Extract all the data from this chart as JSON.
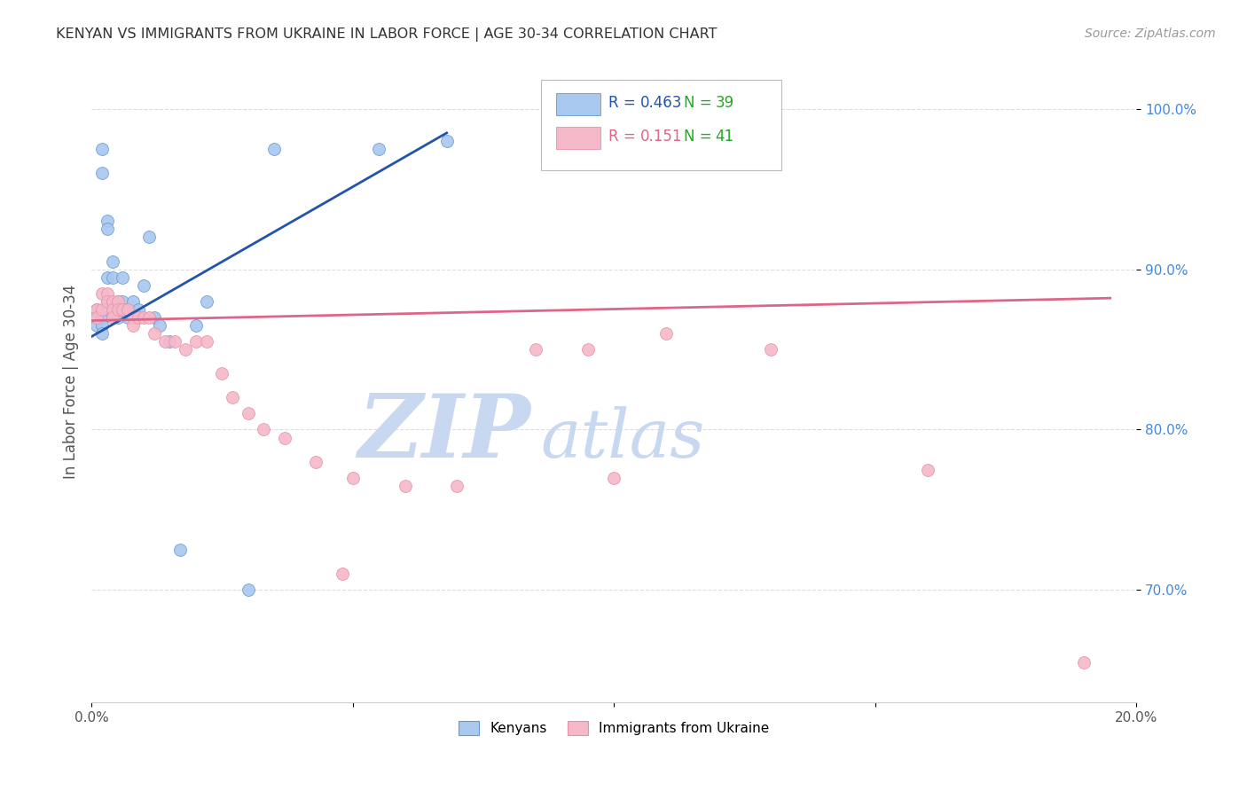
{
  "title": "KENYAN VS IMMIGRANTS FROM UKRAINE IN LABOR FORCE | AGE 30-34 CORRELATION CHART",
  "source": "Source: ZipAtlas.com",
  "ylabel": "In Labor Force | Age 30-34",
  "xlim": [
    0.0,
    0.2
  ],
  "ylim": [
    0.63,
    1.03
  ],
  "yticks": [
    0.7,
    0.8,
    0.9,
    1.0
  ],
  "ytick_labels": [
    "70.0%",
    "80.0%",
    "90.0%",
    "100.0%"
  ],
  "xticks": [
    0.0,
    0.05,
    0.1,
    0.15,
    0.2
  ],
  "xtick_labels": [
    "0.0%",
    "",
    "",
    "",
    "20.0%"
  ],
  "blue_scatter_x": [
    0.001,
    0.001,
    0.001,
    0.002,
    0.002,
    0.002,
    0.002,
    0.002,
    0.003,
    0.003,
    0.003,
    0.003,
    0.003,
    0.004,
    0.004,
    0.004,
    0.004,
    0.005,
    0.005,
    0.005,
    0.006,
    0.006,
    0.007,
    0.007,
    0.008,
    0.009,
    0.009,
    0.01,
    0.011,
    0.012,
    0.013,
    0.015,
    0.017,
    0.02,
    0.022,
    0.03,
    0.035,
    0.055,
    0.068
  ],
  "blue_scatter_y": [
    0.875,
    0.87,
    0.865,
    0.975,
    0.96,
    0.87,
    0.865,
    0.86,
    0.93,
    0.925,
    0.895,
    0.88,
    0.875,
    0.905,
    0.895,
    0.875,
    0.87,
    0.88,
    0.875,
    0.87,
    0.895,
    0.88,
    0.875,
    0.87,
    0.88,
    0.875,
    0.87,
    0.89,
    0.92,
    0.87,
    0.865,
    0.855,
    0.725,
    0.865,
    0.88,
    0.7,
    0.975,
    0.975,
    0.98
  ],
  "pink_scatter_x": [
    0.001,
    0.001,
    0.002,
    0.002,
    0.003,
    0.003,
    0.004,
    0.004,
    0.004,
    0.005,
    0.005,
    0.006,
    0.007,
    0.008,
    0.008,
    0.009,
    0.01,
    0.011,
    0.012,
    0.014,
    0.016,
    0.018,
    0.02,
    0.022,
    0.025,
    0.027,
    0.03,
    0.033,
    0.037,
    0.043,
    0.05,
    0.06,
    0.07,
    0.085,
    0.095,
    0.11,
    0.13,
    0.16,
    0.19,
    0.1,
    0.048
  ],
  "pink_scatter_y": [
    0.875,
    0.87,
    0.885,
    0.875,
    0.885,
    0.88,
    0.88,
    0.875,
    0.87,
    0.88,
    0.875,
    0.875,
    0.875,
    0.87,
    0.865,
    0.87,
    0.87,
    0.87,
    0.86,
    0.855,
    0.855,
    0.85,
    0.855,
    0.855,
    0.835,
    0.82,
    0.81,
    0.8,
    0.795,
    0.78,
    0.77,
    0.765,
    0.765,
    0.85,
    0.85,
    0.86,
    0.85,
    0.775,
    0.655,
    0.77,
    0.71
  ],
  "blue_line_x": [
    0.0,
    0.068
  ],
  "blue_line_y": [
    0.858,
    0.985
  ],
  "pink_line_x": [
    0.0,
    0.195
  ],
  "pink_line_y": [
    0.868,
    0.882
  ],
  "R_blue": 0.463,
  "N_blue": 39,
  "R_pink": 0.151,
  "N_pink": 41,
  "blue_color": "#A8C8F0",
  "pink_color": "#F5B8C8",
  "blue_edge_color": "#6699CC",
  "pink_edge_color": "#E890A8",
  "blue_line_color": "#2255AA",
  "pink_line_color": "#DD6688",
  "title_color": "#333333",
  "source_color": "#999999",
  "ylabel_color": "#555555",
  "ytick_color": "#4488DD",
  "grid_color": "#DDDDDD",
  "legend_R_blue_color": "#2255AA",
  "legend_N_blue_color": "#22AA22",
  "legend_R_pink_color": "#DD6688",
  "legend_N_pink_color": "#22AA22",
  "watermark_zip_color": "#C8D8F0",
  "watermark_atlas_color": "#C8D8F0",
  "scatter_size": 100
}
